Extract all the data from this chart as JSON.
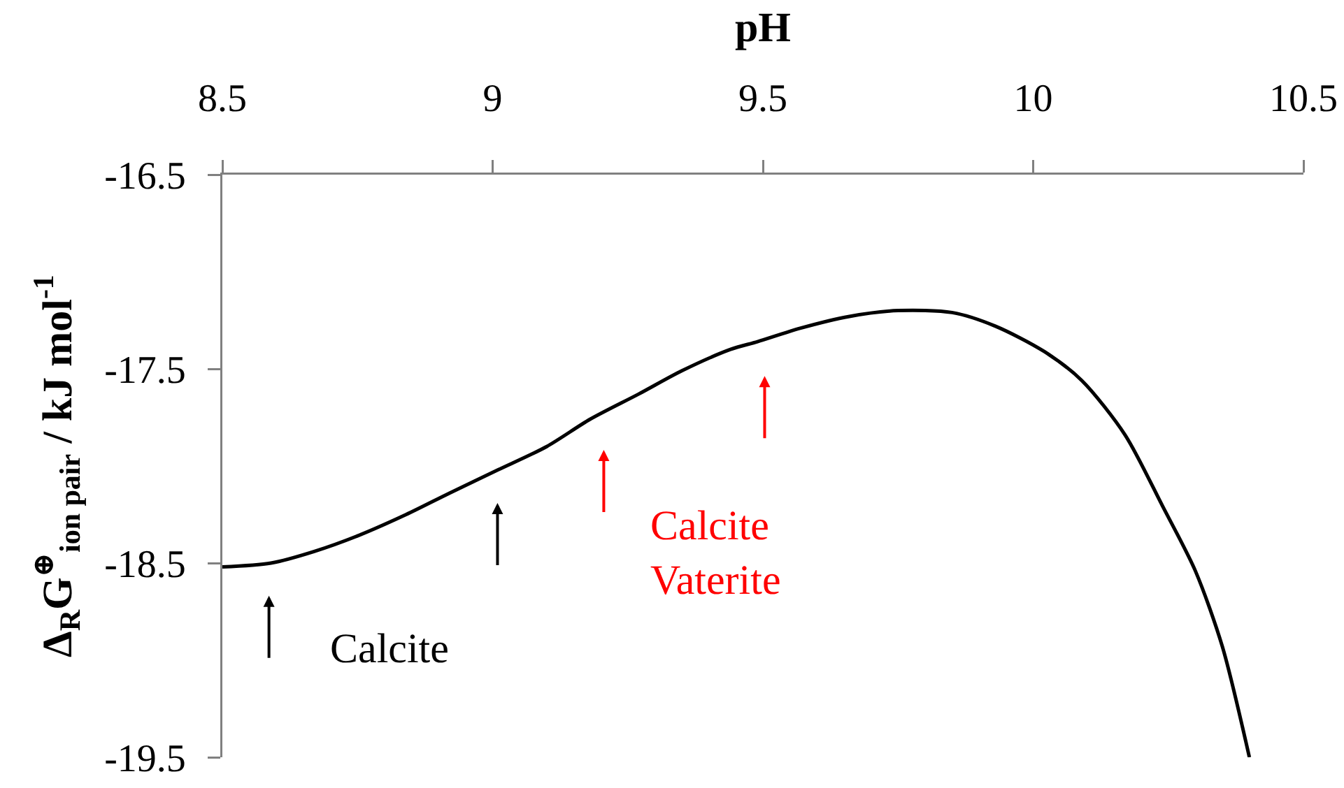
{
  "chart_data": {
    "type": "line",
    "xlabel": "pH",
    "ylabel": "Δ$_{R}$G$^{⊕}$$_{ion pair}$ / kJ mol$^{-1}$",
    "x": [
      8.5,
      8.59,
      8.67,
      8.75,
      8.84,
      8.92,
      9.01,
      9.1,
      9.18,
      9.27,
      9.35,
      9.44,
      9.49,
      9.57,
      9.66,
      9.75,
      9.85,
      9.93,
      10.02,
      10.09,
      10.17,
      10.24,
      10.3,
      10.35,
      10.4
    ],
    "series": [
      {
        "color": "#000000",
        "values": [
          -18.52,
          -18.5,
          -18.44,
          -18.36,
          -18.25,
          -18.14,
          -18.02,
          -17.9,
          -17.76,
          -17.63,
          -17.51,
          -17.4,
          -17.36,
          -17.29,
          -17.23,
          -17.2,
          -17.21,
          -17.28,
          -17.41,
          -17.56,
          -17.84,
          -18.21,
          -18.54,
          -18.93,
          -19.5
        ]
      }
    ],
    "xlim": [
      8.5,
      10.5
    ],
    "xticks": [
      8.5,
      9,
      9.5,
      10,
      10.5
    ],
    "ylim": [
      -19.5,
      -16.5
    ],
    "yticks": [
      -19.5,
      -18.5,
      -17.5,
      -16.5
    ],
    "annotations": [
      "Calcite",
      "Calcite\nVaterite"
    ]
  }
}
